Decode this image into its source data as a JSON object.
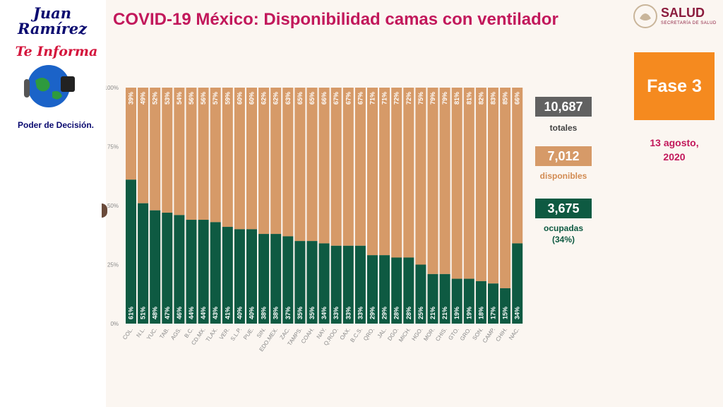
{
  "logo": {
    "title": "Juan Ramírez",
    "subtitle": "Te Informa",
    "tagline": "Poder de Decisión."
  },
  "header": {
    "title": "COVID-19 México: Disponibilidad camas con ventilador",
    "brand": "SALUD",
    "brand_sub": "SECRETARÍA DE SALUD"
  },
  "phase": {
    "label": "Fase 3"
  },
  "date": {
    "line1": "13 agosto,",
    "line2": "2020"
  },
  "summary": {
    "total_value": "10,687",
    "total_label": "totales",
    "available_value": "7,012",
    "available_label": "disponibles",
    "occupied_value": "3,675",
    "occupied_label": "ocupadas",
    "occupied_pct": "(34%)"
  },
  "colors": {
    "occupied": "#0e5a42",
    "available": "#d69a68",
    "title": "#c2185b"
  },
  "chart_data": {
    "type": "bar",
    "stacked": true,
    "title": "COVID-19 México: Disponibilidad camas con ventilador",
    "categories": [
      "COL.",
      "N.L.",
      "YUC.",
      "TAB.",
      "AGS.",
      "B.C.",
      "CD.MX.",
      "TLAX.",
      "VER.",
      "S.L.P.",
      "PUE.",
      "SIN.",
      "EDO.MEX.",
      "ZAC.",
      "TAMPS.",
      "COAH.",
      "NAY.",
      "Q.ROO.",
      "OAX.",
      "B.C.S.",
      "QRO.",
      "JAL.",
      "DGO.",
      "MICH.",
      "HGO.",
      "MOR.",
      "CHIS.",
      "GTO.",
      "GRO.",
      "SON.",
      "CAMP.",
      "CHIH.",
      "NAC."
    ],
    "series": [
      {
        "name": "ocupadas",
        "values": [
          61,
          51,
          48,
          47,
          46,
          44,
          44,
          43,
          41,
          40,
          40,
          38,
          38,
          37,
          35,
          35,
          34,
          33,
          33,
          33,
          29,
          29,
          28,
          28,
          25,
          21,
          21,
          19,
          19,
          18,
          17,
          15,
          34
        ]
      },
      {
        "name": "disponibles",
        "values": [
          39,
          49,
          52,
          53,
          54,
          56,
          56,
          57,
          59,
          60,
          60,
          62,
          62,
          63,
          65,
          65,
          66,
          67,
          67,
          67,
          71,
          71,
          72,
          72,
          75,
          79,
          79,
          81,
          81,
          82,
          83,
          85,
          66
        ]
      }
    ],
    "yticks": [
      "0%",
      "25%",
      "50%",
      "75%",
      "100%"
    ],
    "ylim": [
      0,
      100
    ]
  }
}
